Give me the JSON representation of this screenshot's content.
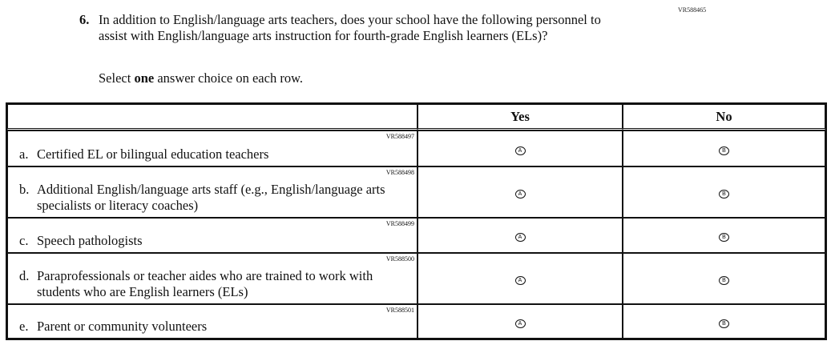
{
  "question": {
    "id": "VR588465",
    "number": "6.",
    "text": "In addition to English/language arts teachers, does your school have the following personnel to assist with English/language arts instruction for fourth-grade English learners (ELs)?",
    "instruction_pre": "Select ",
    "instruction_bold": "one",
    "instruction_post": " answer choice on each row."
  },
  "table": {
    "columns": [
      "Yes",
      "No"
    ],
    "rows": [
      {
        "id": "VR588497",
        "letter": "a.",
        "label": "Certified EL or bilingual education teachers",
        "yes": "A",
        "no": "B"
      },
      {
        "id": "VR588498",
        "letter": "b.",
        "label": "Additional English/language arts staff (e.g., English/language arts specialists or literacy coaches)",
        "yes": "A",
        "no": "B"
      },
      {
        "id": "VR588499",
        "letter": "c.",
        "label": "Speech pathologists",
        "yes": "A",
        "no": "B"
      },
      {
        "id": "VR588500",
        "letter": "d.",
        "label": "Paraprofessionals or teacher aides who are trained to work with students who are English learners (ELs)",
        "yes": "A",
        "no": "B"
      },
      {
        "id": "VR588501",
        "letter": "e.",
        "label": "Parent or community volunteers",
        "yes": "A",
        "no": "B"
      }
    ]
  }
}
